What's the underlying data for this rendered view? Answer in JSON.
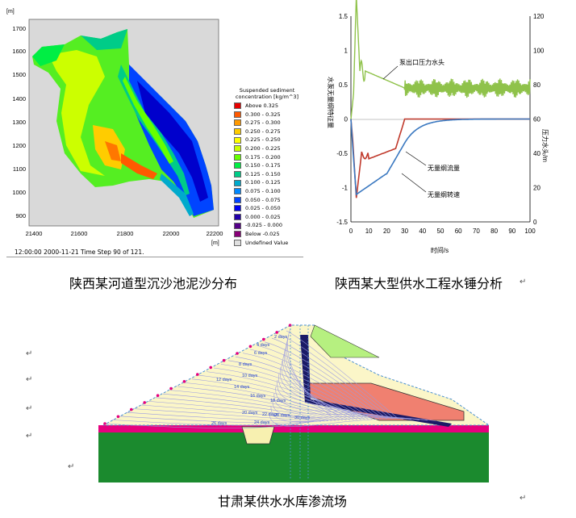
{
  "panel_sediment": {
    "unit_y": "[m]",
    "unit_x": "[m]",
    "y_ticks": [
      "1700",
      "1600",
      "1500",
      "1400",
      "1300",
      "1200",
      "1100",
      "1000",
      "900"
    ],
    "x_ticks": [
      "21400",
      "21600",
      "21800",
      "22000",
      "22200"
    ],
    "legend_title": "Suspended sediment concentration [kg/m^3]",
    "legend": [
      {
        "label": "Above   0.325",
        "color": "#e60000"
      },
      {
        "label": "0.300 - 0.325",
        "color": "#ff5a00"
      },
      {
        "label": "0.275 - 0.300",
        "color": "#ff9900"
      },
      {
        "label": "0.250 - 0.275",
        "color": "#ffcc00"
      },
      {
        "label": "0.225 - 0.250",
        "color": "#ffff00"
      },
      {
        "label": "0.200 - 0.225",
        "color": "#ccff00"
      },
      {
        "label": "0.175 - 0.200",
        "color": "#66ff00"
      },
      {
        "label": "0.150 - 0.175",
        "color": "#00ee44"
      },
      {
        "label": "0.125 - 0.150",
        "color": "#00cc88"
      },
      {
        "label": "0.100 - 0.125",
        "color": "#00aacc"
      },
      {
        "label": "0.075 - 0.100",
        "color": "#0088ff"
      },
      {
        "label": "0.050 - 0.075",
        "color": "#0044ff"
      },
      {
        "label": "0.025 - 0.050",
        "color": "#0000ee"
      },
      {
        "label": "0.000 - 0.025",
        "color": "#2200aa"
      },
      {
        "label": "-0.025 - 0.000",
        "color": "#550088"
      },
      {
        "label": "Below   -0.025",
        "color": "#880077"
      },
      {
        "label": "Undefined Value",
        "color": "#e0e0e0"
      }
    ],
    "footer": "12:00:00 2000-11-21  Time Step 90 of 121."
  },
  "panel_waterhammer": {
    "left_axis_title": "水泵无量纲特征量",
    "right_axis_title": "压力水头/m",
    "x_axis_title": "时间/s",
    "left_ticks": [
      "1.5",
      "1",
      "0.5",
      "0",
      "-0.5",
      "-1",
      "-1.5"
    ],
    "right_ticks": [
      "120",
      "100",
      "80",
      "60",
      "40",
      "20",
      "0"
    ],
    "x_ticks": [
      "0",
      "10",
      "20",
      "30",
      "40",
      "50",
      "60",
      "70",
      "80",
      "90",
      "100"
    ],
    "label_pressure": "泵出口压力水头",
    "label_flow": "无量纲流量",
    "label_speed": "无量纲转速"
  },
  "panel_seepage": {
    "day_labels": [
      "2 days",
      "4 days",
      "6 days",
      "8 days",
      "10 days",
      "12 days",
      "14 days",
      "16 days",
      "18 days",
      "20 days",
      "22 days",
      "24 days",
      "26 days",
      "28 days",
      "30 days"
    ]
  },
  "captions": {
    "sediment": "陕西某河道型沉沙池泥沙分布",
    "waterhammer": "陕西某大型供水工程水锤分析",
    "seepage": "甘肃某供水水库渗流场"
  },
  "marks": {
    "return_mark": "↵"
  }
}
